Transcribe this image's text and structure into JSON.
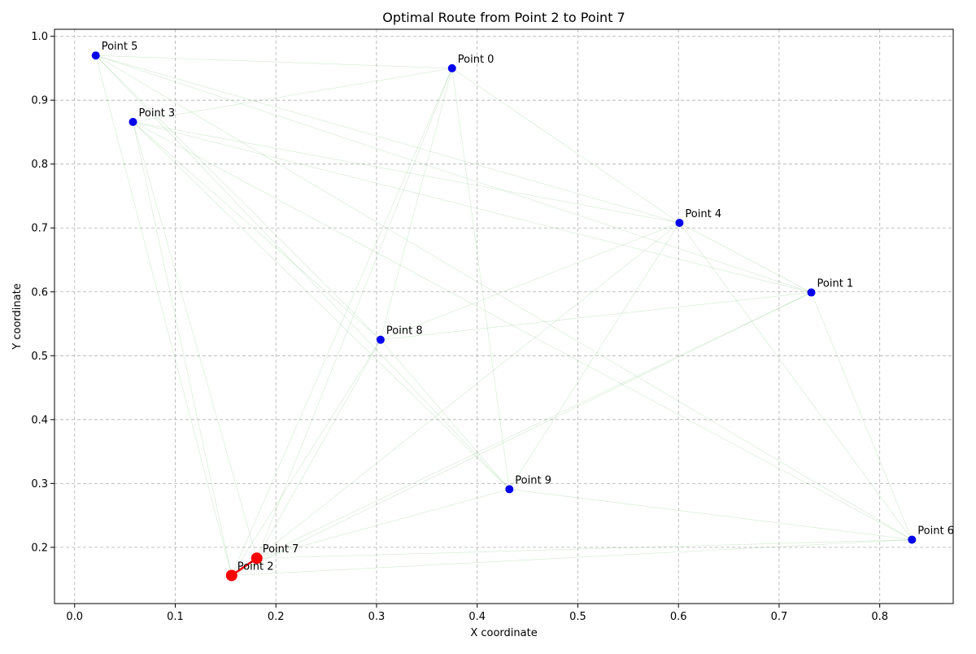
{
  "chart_data": {
    "type": "scatter",
    "title": "Optimal Route from Point 2 to Point 7",
    "xlabel": "X coordinate",
    "ylabel": "Y coordinate",
    "xlim": [
      -0.02,
      0.873
    ],
    "ylim": [
      0.112,
      1.011
    ],
    "xticks": [
      0.0,
      0.1,
      0.2,
      0.3,
      0.4,
      0.5,
      0.6,
      0.7,
      0.8
    ],
    "xtick_labels": [
      "0.0",
      "0.1",
      "0.2",
      "0.3",
      "0.4",
      "0.5",
      "0.6",
      "0.7",
      "0.8"
    ],
    "yticks": [
      0.2,
      0.3,
      0.4,
      0.5,
      0.6,
      0.7,
      0.8,
      0.9,
      1.0
    ],
    "ytick_labels": [
      "0.2",
      "0.3",
      "0.4",
      "0.5",
      "0.6",
      "0.7",
      "0.8",
      "0.9",
      "1.0"
    ],
    "grid": true,
    "points": [
      {
        "label": "Point 0",
        "x": 0.375,
        "y": 0.95
      },
      {
        "label": "Point 1",
        "x": 0.732,
        "y": 0.599
      },
      {
        "label": "Point 2",
        "x": 0.156,
        "y": 0.156
      },
      {
        "label": "Point 3",
        "x": 0.058,
        "y": 0.866
      },
      {
        "label": "Point 4",
        "x": 0.601,
        "y": 0.708
      },
      {
        "label": "Point 5",
        "x": 0.021,
        "y": 0.97
      },
      {
        "label": "Point 6",
        "x": 0.832,
        "y": 0.212
      },
      {
        "label": "Point 7",
        "x": 0.181,
        "y": 0.183
      },
      {
        "label": "Point 8",
        "x": 0.304,
        "y": 0.525
      },
      {
        "label": "Point 9",
        "x": 0.432,
        "y": 0.291
      }
    ],
    "edges": [
      [
        0,
        5
      ],
      [
        0,
        3
      ],
      [
        0,
        4
      ],
      [
        0,
        8
      ],
      [
        0,
        7
      ],
      [
        0,
        9
      ],
      [
        0,
        2
      ],
      [
        1,
        4
      ],
      [
        1,
        3
      ],
      [
        1,
        5
      ],
      [
        1,
        8
      ],
      [
        1,
        6
      ],
      [
        1,
        7
      ],
      [
        1,
        2
      ],
      [
        2,
        5
      ],
      [
        2,
        3
      ],
      [
        2,
        6
      ],
      [
        2,
        8
      ],
      [
        3,
        4
      ],
      [
        3,
        8
      ],
      [
        3,
        9
      ],
      [
        3,
        7
      ],
      [
        3,
        6
      ],
      [
        4,
        5
      ],
      [
        4,
        8
      ],
      [
        4,
        7
      ],
      [
        4,
        9
      ],
      [
        4,
        6
      ],
      [
        5,
        8
      ],
      [
        5,
        9
      ],
      [
        5,
        6
      ],
      [
        6,
        9
      ],
      [
        6,
        7
      ],
      [
        7,
        8
      ],
      [
        7,
        9
      ],
      [
        8,
        9
      ]
    ],
    "route": [
      2,
      7
    ],
    "colors": {
      "point": "#0000ee",
      "route": "#ff0000",
      "edge": "#2ca02c",
      "grid": "#b0b0b0"
    }
  }
}
